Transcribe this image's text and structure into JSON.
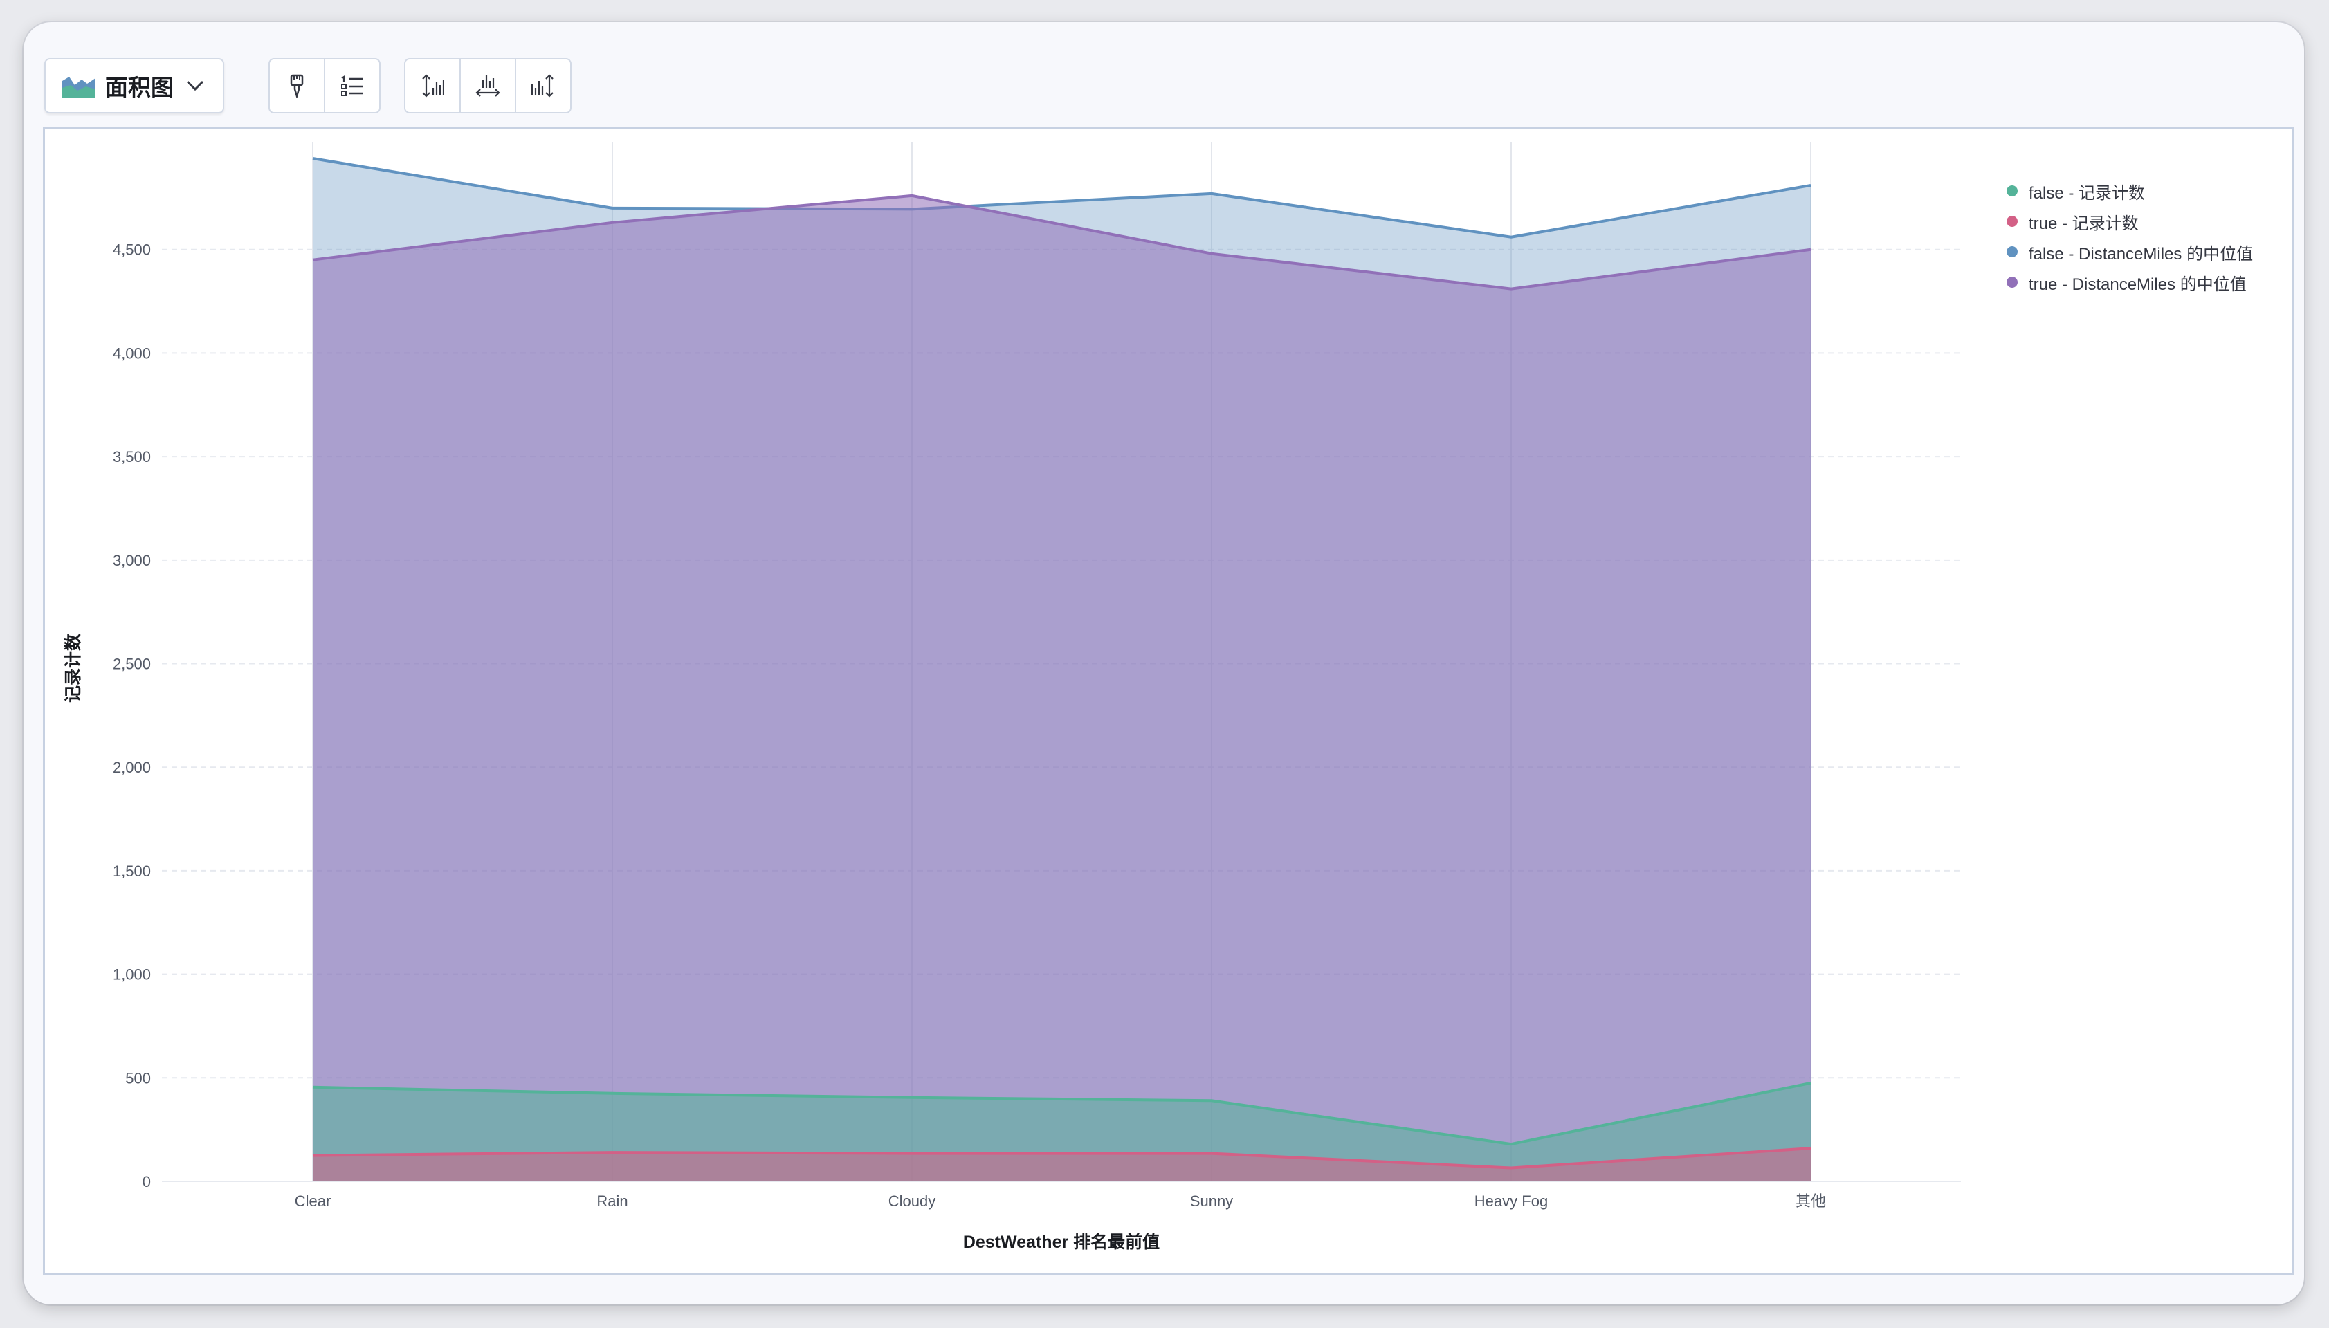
{
  "toolbar": {
    "chart_type_label": "面积图",
    "chart_type_icon": "area-chart-icon",
    "buttons": [
      {
        "name": "paintbrush-icon"
      },
      {
        "name": "legend-list-icon"
      },
      {
        "name": "left-axis-icon"
      },
      {
        "name": "bottom-axis-icon"
      },
      {
        "name": "right-axis-icon"
      }
    ]
  },
  "colors": {
    "false_count": "#54b399",
    "true_count": "#d36086",
    "false_median": "#6092c0",
    "true_median": "#9170b8"
  },
  "chart_data": {
    "type": "area",
    "categories": [
      "Clear",
      "Rain",
      "Cloudy",
      "Sunny",
      "Heavy Fog",
      "其他"
    ],
    "xlabel": "DestWeather 排名最前值",
    "ylabel": "记录计数",
    "ylim": [
      0,
      4950
    ],
    "yticks": [
      0,
      500,
      1000,
      1500,
      2000,
      2500,
      3000,
      3500,
      4000,
      4500
    ],
    "ytick_labels": [
      "0",
      "500",
      "1,000",
      "1,500",
      "2,000",
      "2,500",
      "3,000",
      "3,500",
      "4,000",
      "4,500"
    ],
    "grid": true,
    "legend_position": "top-right",
    "series": [
      {
        "name": "false - 记录计数",
        "color": "#54b399",
        "values": [
          455,
          425,
          405,
          390,
          180,
          475
        ]
      },
      {
        "name": "true - 记录计数",
        "color": "#d36086",
        "values": [
          125,
          140,
          135,
          135,
          65,
          160
        ]
      },
      {
        "name": "false - DistanceMiles 的中位值",
        "color": "#6092c0",
        "values": [
          4940,
          4700,
          4695,
          4770,
          4560,
          4810
        ]
      },
      {
        "name": "true - DistanceMiles 的中位值",
        "color": "#9170b8",
        "values": [
          4450,
          4630,
          4760,
          4480,
          4310,
          4500
        ]
      }
    ]
  }
}
